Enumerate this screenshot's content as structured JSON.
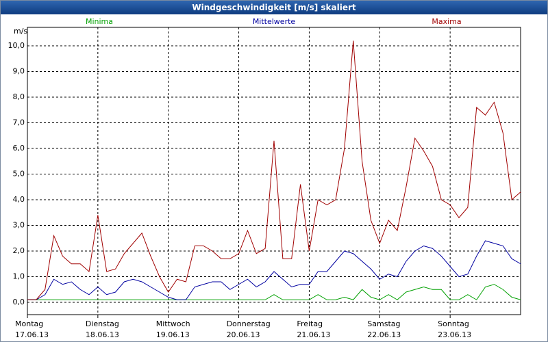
{
  "chart_data": {
    "type": "line",
    "title": "Windgeschwindigkeit [m/s] skaliert",
    "y_label": "m/s",
    "x": [
      0,
      0.125,
      0.25,
      0.375,
      0.5,
      0.625,
      0.75,
      0.875,
      1,
      1.125,
      1.25,
      1.375,
      1.5,
      1.625,
      1.75,
      1.875,
      2,
      2.125,
      2.25,
      2.375,
      2.5,
      2.625,
      2.75,
      2.875,
      3,
      3.125,
      3.25,
      3.375,
      3.5,
      3.625,
      3.75,
      3.875,
      4,
      4.125,
      4.25,
      4.375,
      4.5,
      4.625,
      4.75,
      4.875,
      5,
      5.125,
      5.25,
      5.375,
      5.5,
      5.625,
      5.75,
      5.875,
      6,
      6.125,
      6.25,
      6.375,
      6.5,
      6.625,
      6.75,
      6.875,
      7
    ],
    "series": [
      {
        "name": "Minima",
        "color": "#00a000",
        "values": [
          0.1,
          0.1,
          0.1,
          0.1,
          0.1,
          0.1,
          0.1,
          0.1,
          0.1,
          0.1,
          0.1,
          0.1,
          0.1,
          0.1,
          0.1,
          0.1,
          0.1,
          0.1,
          0.1,
          0.1,
          0.1,
          0.1,
          0.1,
          0.1,
          0.1,
          0.1,
          0.1,
          0.1,
          0.3,
          0.1,
          0.1,
          0.1,
          0.1,
          0.3,
          0.1,
          0.1,
          0.2,
          0.1,
          0.5,
          0.2,
          0.1,
          0.3,
          0.1,
          0.4,
          0.5,
          0.6,
          0.5,
          0.5,
          0.1,
          0.1,
          0.3,
          0.1,
          0.6,
          0.7,
          0.5,
          0.2,
          0.1
        ]
      },
      {
        "name": "Mittelwerte",
        "color": "#0000a0",
        "values": [
          0.1,
          0.1,
          0.3,
          0.9,
          0.7,
          0.8,
          0.5,
          0.3,
          0.6,
          0.3,
          0.4,
          0.8,
          0.9,
          0.8,
          0.6,
          0.4,
          0.2,
          0.1,
          0.1,
          0.6,
          0.7,
          0.8,
          0.8,
          0.5,
          0.7,
          0.9,
          0.6,
          0.8,
          1.2,
          0.9,
          0.6,
          0.7,
          0.7,
          1.2,
          1.2,
          1.6,
          2.0,
          1.9,
          1.6,
          1.3,
          0.9,
          1.1,
          1.0,
          1.6,
          2.0,
          2.2,
          2.1,
          1.8,
          1.4,
          1.0,
          1.1,
          1.8,
          2.4,
          2.3,
          2.2,
          1.7,
          1.5
        ]
      },
      {
        "name": "Maxima",
        "color": "#a00000",
        "values": [
          0.1,
          0.1,
          0.5,
          2.6,
          1.8,
          1.5,
          1.5,
          1.2,
          3.4,
          1.2,
          1.3,
          1.9,
          2.3,
          2.7,
          1.8,
          1.0,
          0.4,
          0.9,
          0.8,
          2.2,
          2.2,
          2.0,
          1.7,
          1.7,
          1.9,
          2.8,
          1.9,
          2.1,
          6.3,
          1.7,
          1.7,
          4.6,
          2.0,
          4.0,
          3.8,
          4.0,
          6.0,
          10.2,
          5.5,
          3.2,
          2.3,
          3.2,
          2.8,
          4.5,
          6.4,
          5.9,
          5.3,
          4.0,
          3.8,
          3.3,
          3.7,
          7.6,
          7.3,
          7.8,
          6.6,
          4.0,
          4.3
        ]
      }
    ],
    "xlim": [
      0,
      7
    ],
    "xticks": [
      {
        "value": 0,
        "label": "Montag",
        "date": "17.06.13"
      },
      {
        "value": 1,
        "label": "Dienstag",
        "date": "18.06.13"
      },
      {
        "value": 2,
        "label": "Mittwoch",
        "date": "19.06.13"
      },
      {
        "value": 3,
        "label": "Donnerstag",
        "date": "20.06.13"
      },
      {
        "value": 4,
        "label": "Freitag",
        "date": "21.06.13"
      },
      {
        "value": 5,
        "label": "Samstag",
        "date": "22.06.13"
      },
      {
        "value": 6,
        "label": "Sonntag",
        "date": "23.06.13"
      }
    ],
    "ylim": [
      -0.48,
      10.72
    ],
    "yticks": [
      {
        "value": 0,
        "label": "0,0"
      },
      {
        "value": 1,
        "label": "1,0"
      },
      {
        "value": 2,
        "label": "2,0"
      },
      {
        "value": 3,
        "label": "3,0"
      },
      {
        "value": 4,
        "label": "4,0"
      },
      {
        "value": 5,
        "label": "5,0"
      },
      {
        "value": 6,
        "label": "6,0"
      },
      {
        "value": 7,
        "label": "7,0"
      },
      {
        "value": 8,
        "label": "8,0"
      },
      {
        "value": 9,
        "label": "9,0"
      },
      {
        "value": 10,
        "label": "10,0"
      }
    ],
    "grid": true
  }
}
